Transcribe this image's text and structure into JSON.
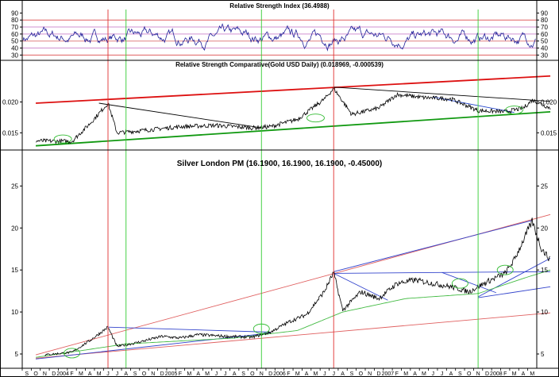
{
  "chart_data": [
    {
      "type": "line",
      "title": "Relative Strength Index (36.4988)",
      "yticks": [
        30,
        40,
        50,
        60,
        70,
        80,
        90
      ],
      "ylim": [
        27,
        95
      ],
      "reference_levels": [
        30,
        40,
        50,
        60,
        70,
        80
      ],
      "reference_colors": {
        "outer": "#e06060",
        "inner": "#d090d0",
        "mid": "#e08080"
      },
      "series": [
        {
          "color": "#22229a"
        }
      ],
      "legend": "none",
      "grid": false
    },
    {
      "type": "line",
      "title": "Relative Strength Comparative(Gold USD Daily) (0.018969, -0.000539)",
      "yticks": [
        "0.015",
        "0.020"
      ],
      "ytick_values": [
        0.015,
        0.02
      ],
      "ylim": [
        0.0126,
        0.0252
      ],
      "series": [
        {
          "color": "#000000"
        }
      ],
      "trendlines": [
        {
          "color": "#dd1111",
          "from": [
            "2003-08",
            0.0198
          ],
          "to": [
            "2008-05",
            0.0242
          ]
        },
        {
          "color": "#119911",
          "from": [
            "2003-08",
            0.0129
          ],
          "to": [
            "2008-05",
            0.0184
          ]
        },
        {
          "color": "#000000",
          "from": [
            "2004-03",
            0.0198
          ],
          "to": [
            "2005-09",
            0.0158
          ]
        },
        {
          "color": "#000000",
          "from": [
            "2006-05",
            0.0224
          ],
          "to": [
            "2008-05",
            0.0201
          ]
        },
        {
          "color": "#2244cc",
          "from": [
            "2007-04",
            0.0208
          ],
          "to": [
            "2008-01",
            0.0183
          ]
        }
      ],
      "legend": "none",
      "grid": false
    },
    {
      "type": "line",
      "title": "Silver London PM (16.1900, 16.1900, 16.1900, -0.45000)",
      "yticks": [
        5,
        10,
        15,
        20,
        25
      ],
      "ylim": [
        3.3,
        29
      ],
      "xlim": [
        "2003-08",
        "2008-05"
      ],
      "xtick_labels": [
        "S",
        "O",
        "N",
        "D",
        "2004",
        "F",
        "M",
        "A",
        "M",
        "J",
        "J",
        "A",
        "S",
        "O",
        "N",
        "D",
        "2005",
        "F",
        "M",
        "A",
        "M",
        "J",
        "J",
        "A",
        "S",
        "O",
        "N",
        "D",
        "2006",
        "F",
        "M",
        "A",
        "M",
        "J",
        "J",
        "A",
        "S",
        "O",
        "N",
        "D",
        "2007",
        "F",
        "M",
        "A",
        "M",
        "J",
        "J",
        "A",
        "S",
        "O",
        "N",
        "D",
        "2008",
        "F",
        "M",
        "A",
        "M"
      ],
      "series": [
        {
          "color": "#000000"
        }
      ],
      "approx_points": [
        [
          "2003-09",
          4.9
        ],
        [
          "2003-12",
          5.2
        ],
        [
          "2004-02",
          6.6
        ],
        [
          "2004-03",
          7.4
        ],
        [
          "2004-04",
          8.2
        ],
        [
          "2004-05",
          5.9
        ],
        [
          "2004-07",
          6.3
        ],
        [
          "2004-10",
          7.1
        ],
        [
          "2004-12",
          6.9
        ],
        [
          "2005-02",
          7.3
        ],
        [
          "2005-05",
          7.1
        ],
        [
          "2005-08",
          7.0
        ],
        [
          "2005-10",
          7.6
        ],
        [
          "2005-12",
          8.8
        ],
        [
          "2006-02",
          9.7
        ],
        [
          "2006-04",
          12.5
        ],
        [
          "2006-05",
          14.7
        ],
        [
          "2006-06",
          10.2
        ],
        [
          "2006-08",
          12.4
        ],
        [
          "2006-10",
          11.6
        ],
        [
          "2006-12",
          13.4
        ],
        [
          "2007-02",
          13.8
        ],
        [
          "2007-04",
          13.4
        ],
        [
          "2007-06",
          13.0
        ],
        [
          "2007-08",
          12.4
        ],
        [
          "2007-10",
          13.6
        ],
        [
          "2007-12",
          14.6
        ],
        [
          "2008-01",
          16.2
        ],
        [
          "2008-03",
          20.8
        ],
        [
          "2008-04",
          17.6
        ],
        [
          "2008-05",
          16.2
        ]
      ],
      "trendlines": [
        {
          "color": "#e06060",
          "from": [
            "2003-08",
            4.9
          ],
          "to": [
            "2008-05",
            21.6
          ]
        },
        {
          "color": "#e06060",
          "from": [
            "2003-08",
            4.5
          ],
          "to": [
            "2008-05",
            9.9
          ]
        },
        {
          "color": "#3344cc",
          "from": [
            "2004-04",
            8.2
          ],
          "to": [
            "2005-10",
            7.6
          ]
        },
        {
          "color": "#3344cc",
          "from": [
            "2006-05",
            14.6
          ],
          "to": [
            "2008-05",
            14.8
          ]
        },
        {
          "color": "#3344cc",
          "from": [
            "2006-05",
            14.6
          ],
          "to": [
            "2006-11",
            11.4
          ]
        },
        {
          "color": "#3344cc",
          "from": [
            "2006-05",
            14.8
          ],
          "to": [
            "2008-03",
            20.9
          ]
        },
        {
          "color": "#3344cc",
          "from": [
            "2007-05",
            14.7
          ],
          "to": [
            "2007-11",
            12.3
          ]
        },
        {
          "color": "#3344cc",
          "from": [
            "2007-09",
            11.7
          ],
          "to": [
            "2008-05",
            13.0
          ]
        },
        {
          "color": "#3344cc",
          "from": [
            "2007-09",
            11.8
          ],
          "to": [
            "2008-05",
            16.4
          ]
        },
        {
          "color": "#3344cc",
          "from": [
            "2003-08",
            4.4
          ],
          "to": [
            "2005-10",
            7.5
          ]
        }
      ],
      "legend": "none",
      "grid": false
    }
  ],
  "markers": {
    "red_vertical": [
      "2004-04",
      "2006-05"
    ],
    "green_vertical": [
      "2004-06",
      "2005-09",
      "2007-09"
    ]
  }
}
